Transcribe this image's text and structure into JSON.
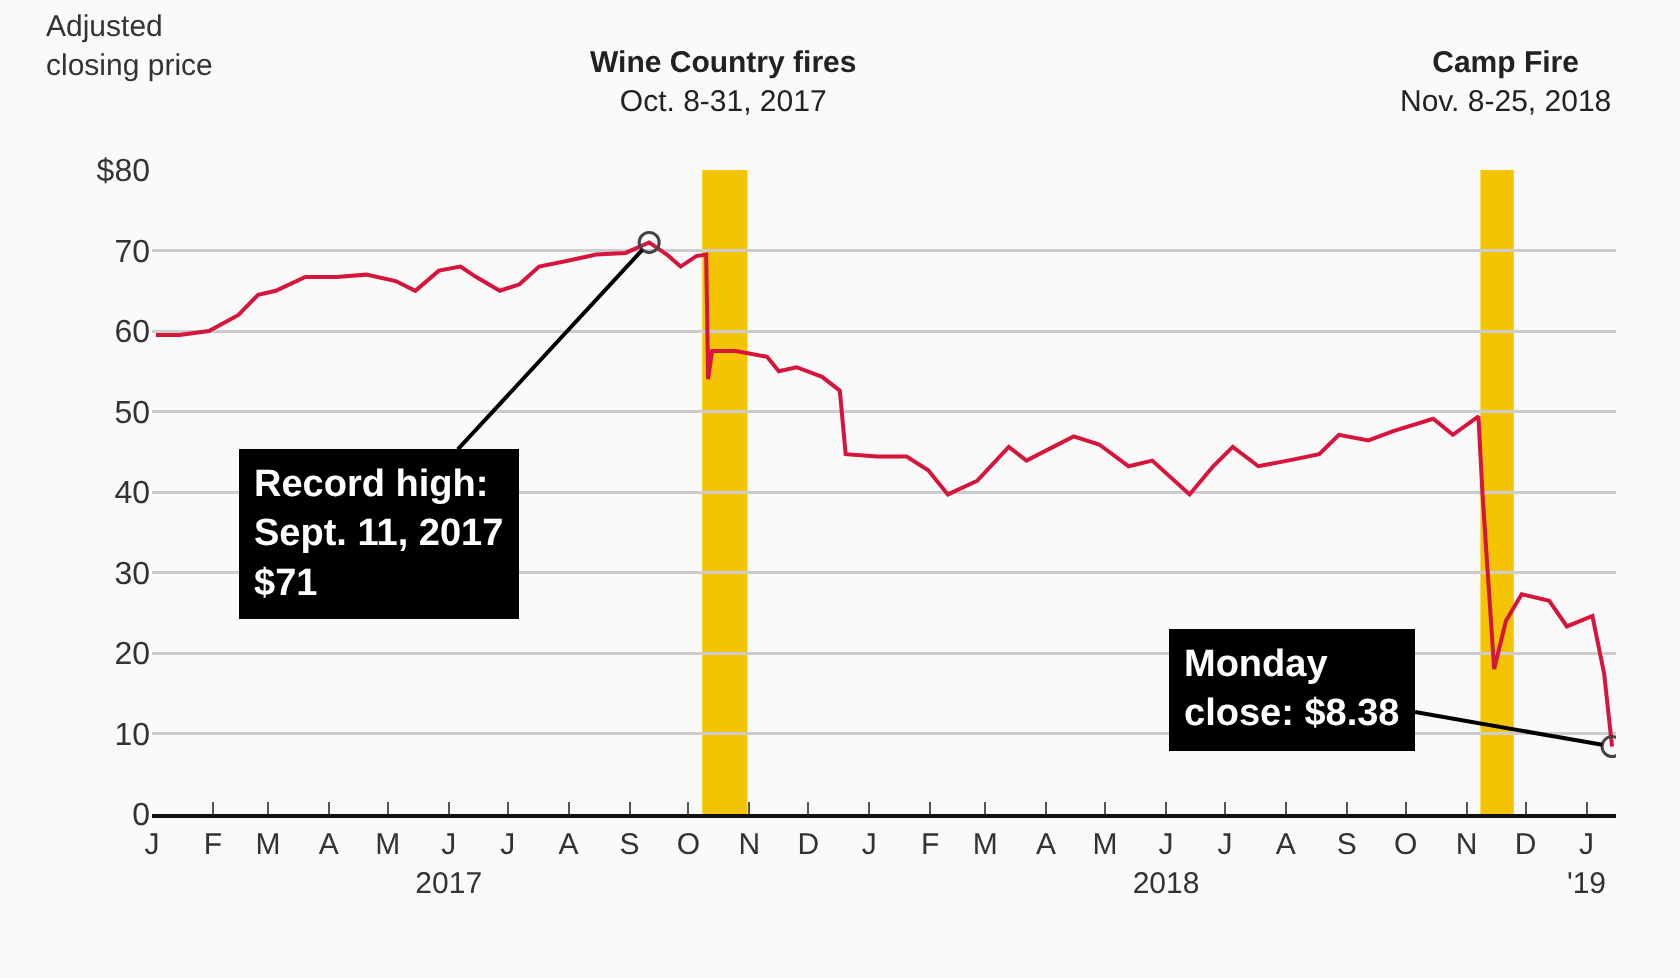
{
  "chart_data": {
    "type": "line",
    "ylabel": "Adjusted\nclosing price",
    "x": [
      "2017-01-03",
      "2017-01-15",
      "2017-01-30",
      "2017-02-14",
      "2017-02-24",
      "2017-03-05",
      "2017-03-20",
      "2017-04-05",
      "2017-04-20",
      "2017-05-05",
      "2017-05-15",
      "2017-05-27",
      "2017-06-07",
      "2017-06-15",
      "2017-06-27",
      "2017-07-07",
      "2017-07-17",
      "2017-07-31",
      "2017-08-15",
      "2017-08-30",
      "2017-09-11",
      "2017-09-20",
      "2017-09-27",
      "2017-10-05",
      "2017-10-10",
      "2017-10-11",
      "2017-10-13",
      "2017-10-25",
      "2017-11-10",
      "2017-11-16",
      "2017-11-25",
      "2017-12-08",
      "2017-12-17",
      "2017-12-20",
      "2018-01-05",
      "2018-01-20",
      "2018-01-31",
      "2018-02-10",
      "2018-02-25",
      "2018-03-13",
      "2018-03-22",
      "2018-04-15",
      "2018-04-28",
      "2018-05-13",
      "2018-05-25",
      "2018-06-13",
      "2018-06-25",
      "2018-07-05",
      "2018-07-18",
      "2018-08-02",
      "2018-08-18",
      "2018-08-28",
      "2018-09-12",
      "2018-09-25",
      "2018-10-15",
      "2018-10-25",
      "2018-11-07",
      "2018-11-09",
      "2018-11-15",
      "2018-11-21",
      "2018-11-29",
      "2018-12-13",
      "2018-12-22",
      "2019-01-04",
      "2019-01-10",
      "2019-01-14"
    ],
    "series": [
      {
        "color": "#d6143c",
        "values": [
          59.5,
          59.5,
          60,
          62,
          64.5,
          65,
          66.7,
          66.7,
          67,
          66.2,
          65,
          67.5,
          68,
          66.7,
          65,
          65.8,
          68,
          68.7,
          69.5,
          69.7,
          71,
          69.5,
          68,
          69.3,
          69.5,
          54,
          57.5,
          57.5,
          56.8,
          55,
          55.5,
          54.3,
          52.6,
          44.7,
          44.4,
          44.4,
          42.7,
          39.7,
          41.4,
          45.6,
          43.9,
          46.9,
          45.9,
          43.2,
          43.9,
          39.7,
          43.2,
          45.6,
          43.2,
          43.9,
          44.7,
          47.1,
          46.4,
          47.6,
          49.1,
          47.1,
          49.4,
          40,
          18,
          24,
          27.3,
          26.5,
          23.3,
          24.6,
          17.4,
          8.38
        ]
      }
    ],
    "xlim": [
      "2017-01-01",
      "2019-01-16"
    ],
    "xticks": [
      {
        "value": "2017-01-01",
        "label": "J"
      },
      {
        "value": "2017-02-01",
        "label": "F"
      },
      {
        "value": "2017-03-01",
        "label": "M"
      },
      {
        "value": "2017-04-01",
        "label": "A"
      },
      {
        "value": "2017-05-01",
        "label": "M"
      },
      {
        "value": "2017-06-01",
        "label": "J\n2017"
      },
      {
        "value": "2017-07-01",
        "label": "J"
      },
      {
        "value": "2017-08-01",
        "label": "A"
      },
      {
        "value": "2017-09-01",
        "label": "S"
      },
      {
        "value": "2017-10-01",
        "label": "O"
      },
      {
        "value": "2017-11-01",
        "label": "N"
      },
      {
        "value": "2017-12-01",
        "label": "D"
      },
      {
        "value": "2018-01-01",
        "label": "J"
      },
      {
        "value": "2018-02-01",
        "label": "F"
      },
      {
        "value": "2018-03-01",
        "label": "M"
      },
      {
        "value": "2018-04-01",
        "label": "A"
      },
      {
        "value": "2018-05-01",
        "label": "M"
      },
      {
        "value": "2018-06-01",
        "label": "J\n2018"
      },
      {
        "value": "2018-07-01",
        "label": "J"
      },
      {
        "value": "2018-08-01",
        "label": "A"
      },
      {
        "value": "2018-09-01",
        "label": "S"
      },
      {
        "value": "2018-10-01",
        "label": "O"
      },
      {
        "value": "2018-11-01",
        "label": "N"
      },
      {
        "value": "2018-12-01",
        "label": "D"
      },
      {
        "value": "2019-01-01",
        "label": "J\n'19"
      }
    ],
    "ylim": [
      0,
      80
    ],
    "yticks": [
      0,
      10,
      20,
      30,
      40,
      50,
      60,
      70,
      {
        "value": 80,
        "label": "$80"
      }
    ],
    "grid": "y",
    "bands": [
      {
        "axis": "x",
        "from": "2017-10-08",
        "to": "2017-10-31",
        "label": "Wine Country fires\nOct. 8-31, 2017",
        "color": "#f5c400"
      },
      {
        "axis": "x",
        "from": "2018-11-08",
        "to": "2018-11-25",
        "label": "Camp Fire\nNov. 8-25, 2018",
        "color": "#f5c400"
      }
    ],
    "annotations": [
      {
        "text": "Record high:\nSept. 11, 2017\n$71",
        "x": "2017-09-11",
        "y": 71
      },
      {
        "text": "Monday\nclose: $8.38",
        "x": "2019-01-14",
        "y": 8.38
      }
    ]
  }
}
